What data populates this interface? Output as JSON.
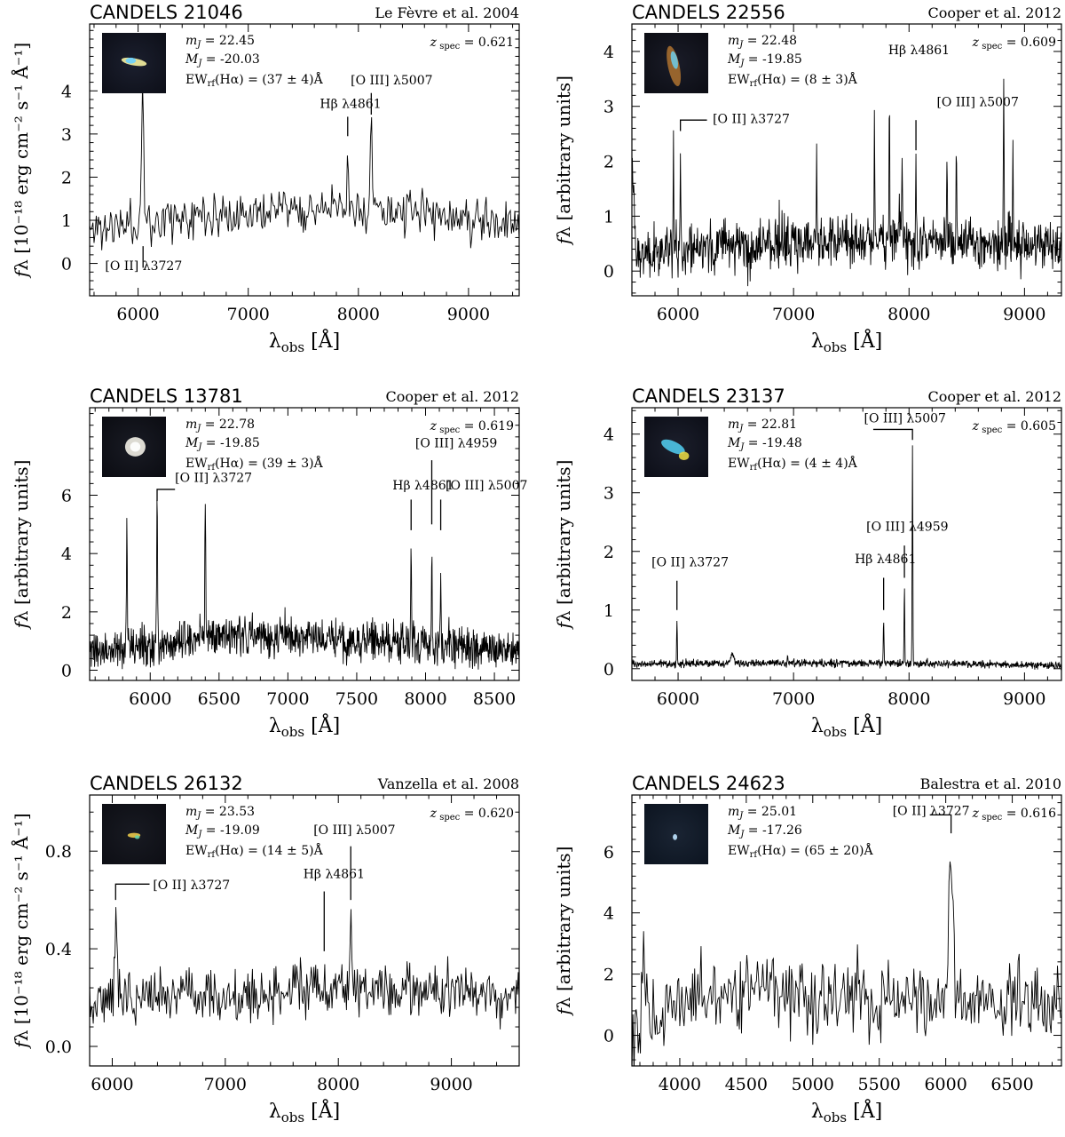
{
  "chart_data": [
    {
      "type": "line",
      "title": "CANDELS 21046",
      "reference": "Le Fèvre et al. 2004",
      "xlabel": "λobs [Å]",
      "ylabel": "fλ [10⁻¹⁸ erg cm⁻² s⁻¹ Å⁻¹]",
      "xlim": [
        5560,
        9460
      ],
      "ylim": [
        -0.75,
        5.55
      ],
      "xticks": [
        6000,
        7000,
        8000,
        9000
      ],
      "yticks": [
        0,
        1,
        2,
        3,
        4
      ],
      "stats": {
        "mag": "mJ = 22.45",
        "absmag": "MJ = -20.03",
        "ew": "EWrf(Hα) = (37 ± 4)Å",
        "z": "zspec = 0.621"
      },
      "series": [
        {
          "continuum": [
            [
              5560,
              0.8
            ],
            [
              6000,
              0.9
            ],
            [
              6500,
              1.15
            ],
            [
              7000,
              1.2
            ],
            [
              7500,
              1.25
            ],
            [
              8000,
              1.25
            ],
            [
              8500,
              1.2
            ],
            [
              9000,
              1.0
            ],
            [
              9460,
              0.9
            ]
          ],
          "noise": 0.32,
          "step": 10,
          "seed": 11,
          "peaks": [
            [
              6040,
              3.8,
              12
            ],
            [
              7903,
              2.6,
              5
            ],
            [
              8117,
              3.0,
              10
            ]
          ]
        }
      ],
      "annotations": [
        {
          "text": "[O II] λ3727",
          "x": 6040,
          "tx": 5700,
          "ty": -0.15,
          "label_pos": "below",
          "marker": [
            [
              6045,
              0.4
            ],
            [
              6045,
              -0.1
            ]
          ]
        },
        {
          "text": "Hβ λ4861",
          "x": 7903,
          "tx": 7650,
          "ty": 3.6,
          "marker": [
            [
              7903,
              3.4
            ],
            [
              7903,
              2.95
            ]
          ]
        },
        {
          "text": "[O III] λ5007",
          "x": 8117,
          "tx": 7930,
          "ty": 4.15,
          "marker": [
            [
              8117,
              3.95
            ],
            [
              8117,
              3.45
            ]
          ]
        }
      ]
    },
    {
      "type": "line",
      "title": "CANDELS 22556",
      "reference": "Cooper et al. 2012",
      "xlabel": "λobs [Å]",
      "ylabel": "fλ [arbitrary units]",
      "xlim": [
        5600,
        9320
      ],
      "ylim": [
        -0.45,
        4.5
      ],
      "xticks": [
        6000,
        7000,
        8000,
        9000
      ],
      "yticks": [
        0,
        1,
        2,
        3,
        4
      ],
      "stats": {
        "mag": "mJ = 22.48",
        "absmag": "MJ = -19.85",
        "ew": "EWrf(Hα) = (8 ± 3)Å",
        "z": "zspec = 0.609"
      },
      "series": [
        {
          "continuum": [
            [
              5600,
              0.3
            ],
            [
              6500,
              0.45
            ],
            [
              7500,
              0.55
            ],
            [
              8500,
              0.55
            ],
            [
              9320,
              0.45
            ]
          ],
          "noise": 0.28,
          "step": 4,
          "seed": 22,
          "peaks": [
            [
              5600,
              2.0,
              20
            ],
            [
              5960,
              2.9,
              3
            ],
            [
              6020,
              2.15,
              3
            ],
            [
              7200,
              2.6,
              3
            ],
            [
              7700,
              2.6,
              3
            ],
            [
              7830,
              3.8,
              3
            ],
            [
              7940,
              2.3,
              3
            ],
            [
              8060,
              2.1,
              3
            ],
            [
              8330,
              2.0,
              3
            ],
            [
              8410,
              2.6,
              3
            ],
            [
              8820,
              3.5,
              3
            ],
            [
              8900,
              2.3,
              3
            ]
          ]
        }
      ],
      "annotations": [
        {
          "text": "[O II] λ3727",
          "x": 6020,
          "tx": 6300,
          "ty": 2.7,
          "marker": [
            [
              6020,
              2.55
            ],
            [
              6020,
              2.75
            ],
            [
              6250,
              2.75
            ]
          ]
        },
        {
          "text": "Hβ λ4861",
          "x": 7830,
          "tx": 7820,
          "ty": 3.95,
          "marker": []
        },
        {
          "text": "[O III] λ5007",
          "x": 8060,
          "tx": 8240,
          "ty": 3.0,
          "marker": [
            [
              8060,
              2.75
            ],
            [
              8060,
              2.2
            ]
          ]
        }
      ]
    },
    {
      "type": "line",
      "title": "CANDELS 13781",
      "reference": "Cooper et al. 2012",
      "xlabel": "λobs [Å]",
      "ylabel": "fλ [arbitrary units]",
      "xlim": [
        5560,
        8680
      ],
      "ylim": [
        -0.35,
        9.0
      ],
      "xticks": [
        6000,
        6500,
        7000,
        7500,
        8000,
        8500
      ],
      "yticks": [
        0,
        2,
        4,
        6
      ],
      "stats": {
        "mag": "mJ = 22.78",
        "absmag": "MJ = -19.85",
        "ew": "EWrf(Hα) = (39 ± 3)Å",
        "z": "zspec = 0.619"
      },
      "series": [
        {
          "continuum": [
            [
              5560,
              0.6
            ],
            [
              6000,
              0.8
            ],
            [
              6500,
              1.25
            ],
            [
              7000,
              1.15
            ],
            [
              7500,
              1.0
            ],
            [
              8000,
              0.85
            ],
            [
              8680,
              0.7
            ]
          ],
          "noise": 0.42,
          "step": 3,
          "seed": 33,
          "peaks": [
            [
              5830,
              5.0,
              3
            ],
            [
              6050,
              5.7,
              3
            ],
            [
              6400,
              6.0,
              3
            ],
            [
              7895,
              4.2,
              3
            ],
            [
              8045,
              4.1,
              3
            ],
            [
              8110,
              3.6,
              3
            ]
          ]
        }
      ],
      "annotations": [
        {
          "text": "[O II] λ3727",
          "x": 6050,
          "tx": 6180,
          "ty": 6.45,
          "marker": [
            [
              6050,
              5.8
            ],
            [
              6050,
              6.2
            ],
            [
              6180,
              6.2
            ]
          ]
        },
        {
          "text": "Hβ λ4861",
          "x": 7895,
          "tx": 7760,
          "ty": 6.2,
          "marker": [
            [
              7895,
              5.85
            ],
            [
              7895,
              4.8
            ]
          ]
        },
        {
          "text": "[O III] λ4959",
          "x": 8045,
          "tx": 7925,
          "ty": 7.65,
          "marker": [
            [
              8045,
              7.2
            ],
            [
              8045,
              5.0
            ]
          ]
        },
        {
          "text": "[O III] λ5007",
          "x": 8110,
          "tx": 8145,
          "ty": 6.2,
          "marker": [
            [
              8110,
              5.85
            ],
            [
              8110,
              4.8
            ]
          ]
        }
      ]
    },
    {
      "type": "line",
      "title": "CANDELS 23137",
      "reference": "Cooper et al. 2012",
      "xlabel": "λobs [Å]",
      "ylabel": "fλ [arbitrary units]",
      "xlim": [
        5600,
        9320
      ],
      "ylim": [
        -0.2,
        4.45
      ],
      "xticks": [
        6000,
        7000,
        8000,
        9000
      ],
      "yticks": [
        0,
        1,
        2,
        3,
        4
      ],
      "stats": {
        "mag": "mJ = 22.81",
        "absmag": "MJ = -19.48",
        "ew": "EWrf(Hα) = (4 ± 4)Å",
        "z": "zspec = 0.605"
      },
      "series": [
        {
          "continuum": [
            [
              5600,
              0.08
            ],
            [
              7000,
              0.1
            ],
            [
              8500,
              0.08
            ],
            [
              9320,
              0.05
            ]
          ],
          "noise": 0.04,
          "step": 3,
          "seed": 44,
          "peaks": [
            [
              5990,
              0.85,
              3
            ],
            [
              6470,
              0.25,
              15
            ],
            [
              6950,
              0.2,
              3
            ],
            [
              7780,
              0.8,
              3
            ],
            [
              7960,
              1.4,
              3
            ],
            [
              8030,
              3.8,
              3
            ]
          ]
        }
      ],
      "annotations": [
        {
          "text": "[O II] λ3727",
          "x": 5990,
          "tx": 5770,
          "ty": 1.75,
          "marker": [
            [
              5990,
              1.5
            ],
            [
              5990,
              1.0
            ]
          ]
        },
        {
          "text": "Hβ λ4861",
          "x": 7780,
          "tx": 7530,
          "ty": 1.8,
          "marker": [
            [
              7780,
              1.55
            ],
            [
              7780,
              1.0
            ]
          ]
        },
        {
          "text": "[O III] λ4959",
          "x": 7960,
          "tx": 7630,
          "ty": 2.35,
          "marker": [
            [
              7960,
              2.1
            ],
            [
              7960,
              1.55
            ]
          ]
        },
        {
          "text": "[O III] λ5007",
          "x": 8030,
          "tx": 7610,
          "ty": 4.2,
          "marker": [
            [
              7690,
              4.08
            ],
            [
              8030,
              4.08
            ],
            [
              8030,
              3.9
            ]
          ]
        }
      ]
    },
    {
      "type": "line",
      "title": "CANDELS 26132",
      "reference": "Vanzella et al. 2008",
      "xlabel": "λobs [Å]",
      "ylabel": "fλ [10⁻¹⁸ erg cm⁻² s⁻¹ Å⁻¹]",
      "xlim": [
        5800,
        9600
      ],
      "ylim": [
        -0.08,
        1.03
      ],
      "xticks": [
        6000,
        7000,
        8000,
        9000
      ],
      "yticks": [
        0.0,
        0.4,
        0.8
      ],
      "stats": {
        "mag": "mJ = 23.53",
        "absmag": "MJ = -19.09",
        "ew": "EWrf(Hα) = (14 ± 5)Å",
        "z": "zspec = 0.620"
      },
      "series": [
        {
          "continuum": [
            [
              5800,
              0.2
            ],
            [
              6500,
              0.22
            ],
            [
              7500,
              0.2
            ],
            [
              7600,
              0.25
            ],
            [
              8500,
              0.23
            ],
            [
              9600,
              0.2
            ]
          ],
          "noise": 0.07,
          "step": 8,
          "seed": 55,
          "peaks": [
            [
              6030,
              0.58,
              8
            ],
            [
              7875,
              0.3,
              5
            ],
            [
              8110,
              0.55,
              6
            ]
          ]
        }
      ],
      "annotations": [
        {
          "text": "[O II] λ3727",
          "x": 6030,
          "tx": 6360,
          "ty": 0.645,
          "marker": [
            [
              6030,
              0.6
            ],
            [
              6030,
              0.665
            ],
            [
              6330,
              0.665
            ]
          ]
        },
        {
          "text": "Hβ λ4861",
          "x": 7875,
          "tx": 7690,
          "ty": 0.69,
          "marker": [
            [
              7875,
              0.635
            ],
            [
              7875,
              0.39
            ]
          ]
        },
        {
          "text": "[O III] λ5007",
          "x": 8110,
          "tx": 7780,
          "ty": 0.87,
          "marker": [
            [
              8110,
              0.82
            ],
            [
              8110,
              0.6
            ]
          ]
        }
      ]
    },
    {
      "type": "line",
      "title": "CANDELS 24623",
      "reference": "Balestra et al. 2010",
      "xlabel": "λobs [Å]",
      "ylabel": "fλ [arbitrary units]",
      "xlim": [
        3640,
        6870
      ],
      "ylim": [
        -1.0,
        7.85
      ],
      "xticks": [
        4000,
        4500,
        5000,
        5500,
        6000,
        6500
      ],
      "yticks": [
        0,
        2,
        4,
        6
      ],
      "stats": {
        "mag": "mJ = 25.01",
        "absmag": "MJ = -17.26",
        "ew": "EWrf(Hα) = (65 ± 20)Å",
        "z": "zspec = 0.616"
      },
      "series": [
        {
          "continuum": [
            [
              3640,
              0.2
            ],
            [
              3800,
              0.8
            ],
            [
              4200,
              1.5
            ],
            [
              5000,
              1.3
            ],
            [
              6000,
              1.1
            ],
            [
              6870,
              0.9
            ]
          ],
          "noise": 0.75,
          "step": 8,
          "seed": 66,
          "peaks": [
            [
              3730,
              3.3,
              8
            ],
            [
              6040,
              6.0,
              15
            ]
          ]
        }
      ],
      "annotations": [
        {
          "text": "[O II] λ3727",
          "x": 6040,
          "tx": 5600,
          "ty": 7.2,
          "marker": [
            [
              5880,
              7.2
            ],
            [
              6040,
              7.2
            ],
            [
              6040,
              6.6
            ]
          ]
        }
      ]
    }
  ]
}
